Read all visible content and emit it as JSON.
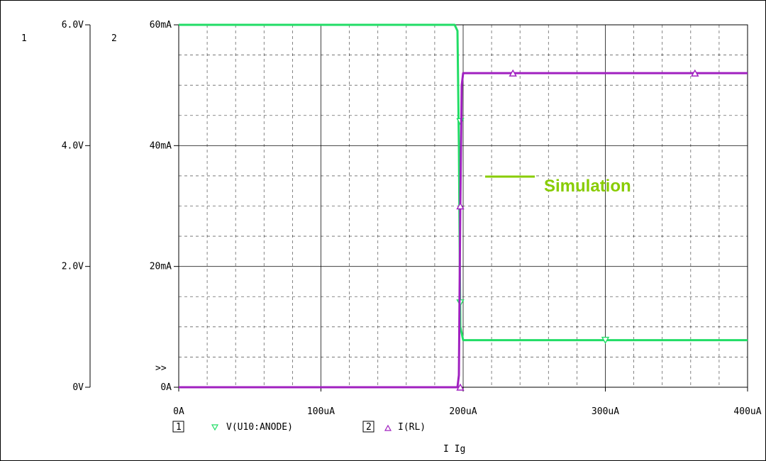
{
  "chart_data": {
    "type": "line",
    "xlabel": "I Ig",
    "x_ticks": [
      "0A",
      "100uA",
      "200uA",
      "300uA",
      "400uA"
    ],
    "xlim": [
      0,
      400
    ],
    "axis1": {
      "label": "1",
      "ticks": [
        "0V",
        "2.0V",
        "4.0V",
        "6.0V"
      ],
      "ylim": [
        0,
        6
      ]
    },
    "axis2": {
      "label": "2",
      "ticks": [
        "0A",
        "20mA",
        "40mA",
        "60mA"
      ],
      "ylim": [
        0,
        60
      ]
    },
    "axis_marker": ">>",
    "series": [
      {
        "name": "V(U10:ANODE)",
        "axis": 1,
        "color": "#22dd66",
        "marker": "triangle-down",
        "x": [
          0,
          194,
          196,
          197,
          198,
          200,
          300,
          400
        ],
        "y": [
          6.0,
          6.0,
          5.9,
          4.0,
          1.0,
          0.78,
          0.78,
          0.78
        ],
        "marker_x": [
          198,
          198,
          300
        ]
      },
      {
        "name": "I(RL)",
        "axis": 2,
        "color": "#a020c0",
        "marker": "triangle-up",
        "x": [
          0,
          196,
          197,
          198,
          199,
          200,
          300,
          400
        ],
        "y": [
          0,
          0,
          2,
          30,
          50,
          52,
          52,
          52
        ],
        "marker_x": [
          198,
          198,
          235,
          363
        ]
      }
    ],
    "legend": {
      "box1": "1",
      "box2": "2"
    },
    "annotation": {
      "text": "Simulation",
      "color": "#88cc00"
    },
    "grid": true
  }
}
